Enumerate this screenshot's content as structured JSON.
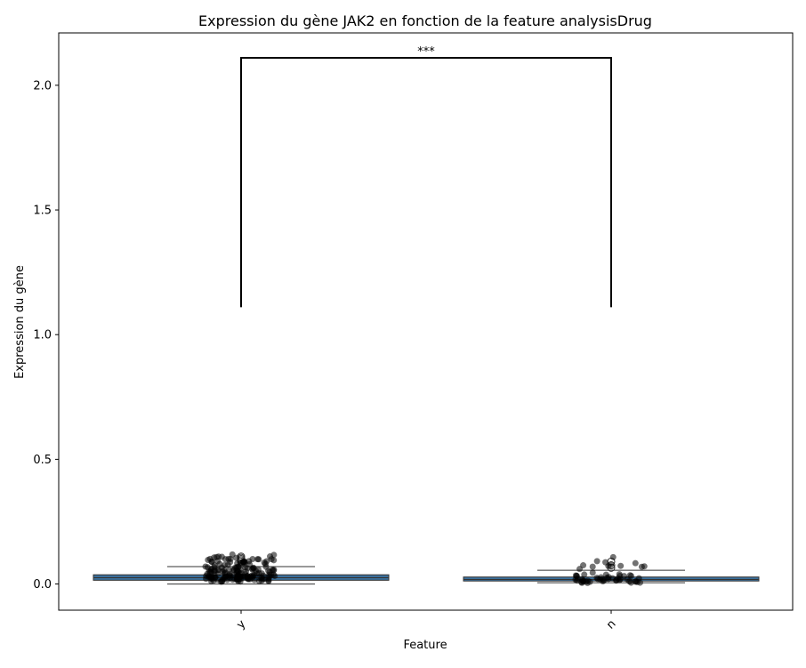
{
  "chart_data": {
    "type": "box",
    "title": "Expression du gène JAK2 en fonction de la feature analysisDrug",
    "xlabel": "Feature",
    "ylabel": "Expression du gène",
    "categories": [
      "y",
      "n"
    ],
    "ylim": [
      -0.105,
      2.21
    ],
    "yticks": [
      "0.0",
      "0.5",
      "1.0",
      "1.5",
      "2.0"
    ],
    "ytick_values": [
      0.0,
      0.5,
      1.0,
      1.5,
      2.0
    ],
    "grid": false,
    "box_color": "#3a6e9a",
    "point_color": "#000000",
    "series": [
      {
        "category": "y",
        "whisker_low": 0.0,
        "q1": 0.015,
        "median": 0.025,
        "q3": 0.037,
        "whisker_high": 0.07,
        "outliers": [
          0.09,
          0.095,
          0.1,
          0.105,
          0.11
        ],
        "points": [
          0.01,
          0.015,
          0.02,
          0.022,
          0.025,
          0.028,
          0.03,
          0.032,
          0.035,
          0.04,
          0.045,
          0.05,
          0.055,
          0.06,
          0.065,
          0.07,
          0.08,
          0.09,
          0.095,
          0.1,
          0.105
        ]
      },
      {
        "category": "n",
        "whisker_low": 0.005,
        "q1": 0.012,
        "median": 0.018,
        "q3": 0.028,
        "whisker_high": 0.055,
        "outliers": [
          0.065,
          0.075,
          0.09
        ],
        "points": [
          0.005,
          0.008,
          0.01,
          0.012,
          0.015,
          0.018,
          0.02,
          0.022,
          0.025,
          0.03,
          0.035,
          0.04,
          0.065,
          0.075,
          0.095
        ]
      }
    ],
    "significance": {
      "label": "***",
      "from": "y",
      "to": "n",
      "y_low": 1.11,
      "y_high": 2.11
    }
  }
}
